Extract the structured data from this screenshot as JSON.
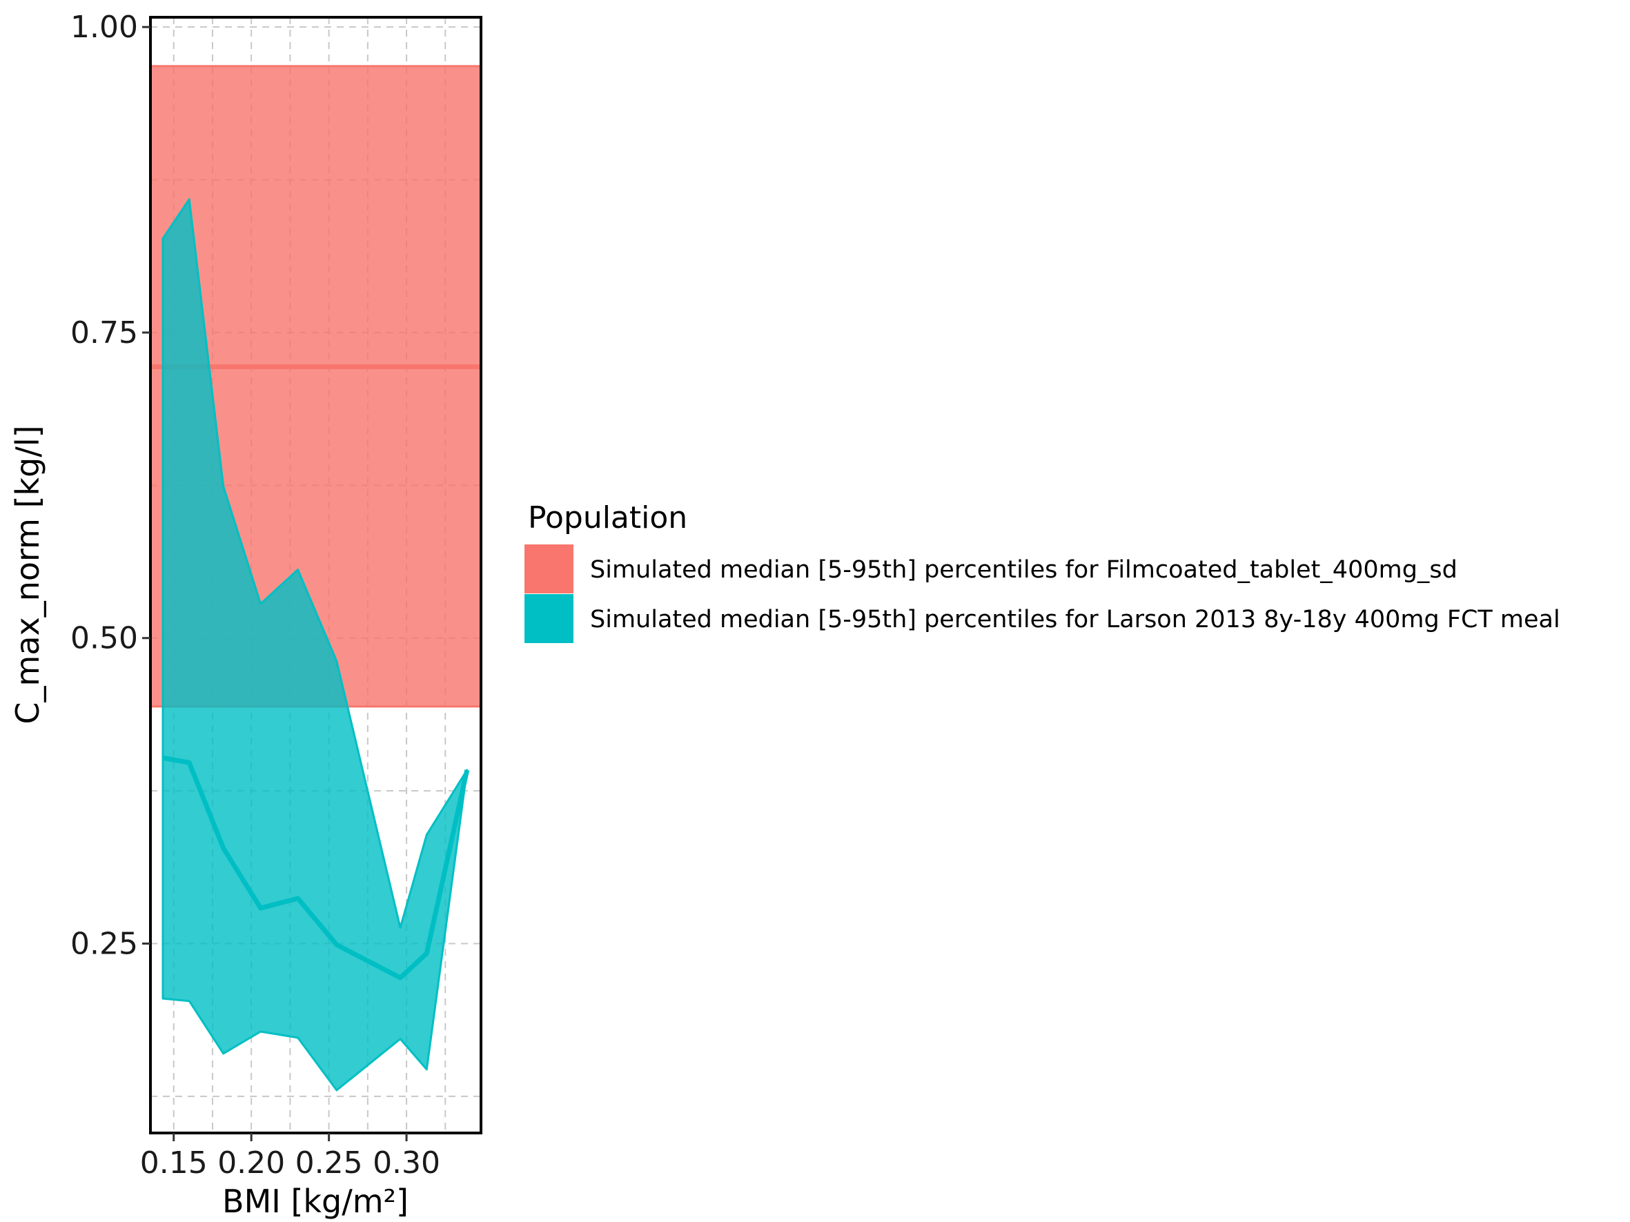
{
  "chart_data": {
    "type": "area",
    "xlabel": "BMI [kg/m²]",
    "ylabel": "C_max_norm [kg/l]",
    "xlim": [
      0.135,
      0.348
    ],
    "ylim": [
      0.095,
      1.008
    ],
    "x_ticks": [
      0.15,
      0.2,
      0.25,
      0.3
    ],
    "x_tick_labels": [
      "0.15",
      "0.20",
      "0.25",
      "0.30"
    ],
    "y_ticks": [
      0.25,
      0.5,
      0.75,
      1.0
    ],
    "y_tick_labels": [
      "0.25",
      "0.50",
      "0.75",
      "1.00"
    ],
    "grid": true,
    "legend_position": "right",
    "legend_title": "Population",
    "series": [
      {
        "name": "Simulated median [5-95th] percentiles for Filmcoated_tablet_400mg_sd",
        "color": "#F8766D",
        "kind": "band",
        "x_range": [
          0.135,
          0.348
        ],
        "median": 0.722,
        "lower": 0.444,
        "upper": 0.968
      },
      {
        "name": "Simulated median [5-95th] percentiles for Larson 2013 8y-18y 400mg FCT meal",
        "color": "#00BFC4",
        "kind": "ribbon",
        "x": [
          0.143,
          0.16,
          0.182,
          0.206,
          0.23,
          0.255,
          0.296,
          0.313,
          0.339
        ],
        "median": [
          0.402,
          0.398,
          0.328,
          0.279,
          0.287,
          0.249,
          0.222,
          0.242,
          0.392
        ],
        "lower": [
          0.205,
          0.203,
          0.16,
          0.178,
          0.173,
          0.13,
          0.172,
          0.147,
          0.392
        ],
        "upper": [
          0.827,
          0.859,
          0.624,
          0.528,
          0.556,
          0.481,
          0.263,
          0.339,
          0.392
        ]
      }
    ]
  }
}
